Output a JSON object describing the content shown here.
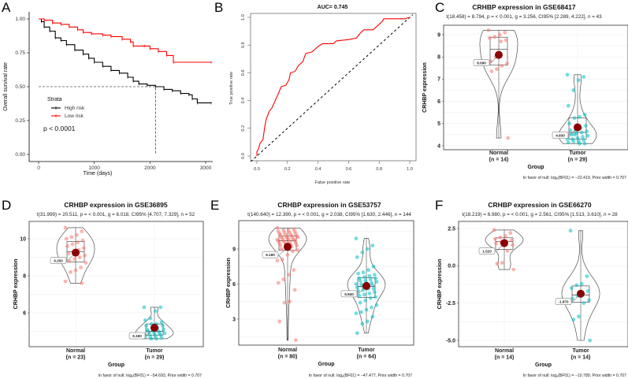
{
  "chart_data": [
    {
      "id": "A",
      "type": "line",
      "panel_label": "A",
      "title": "",
      "xlabel": "Time (days)",
      "ylabel": "Overall survival rate",
      "xlim": [
        0,
        3100
      ],
      "ylim": [
        0,
        1
      ],
      "xticks": [
        "0",
        "1000",
        "2000",
        "3000"
      ],
      "yticks": [
        "0.00",
        "0.25",
        "0.50",
        "0.75",
        "1.00"
      ],
      "legend_title": "Strata",
      "legend_position": "center-left",
      "p_value_text": "p < 0.0001",
      "median_survival_high_risk_days": 2100,
      "series": [
        {
          "name": "High risk",
          "color": "#000000",
          "points": [
            [
              0,
              1
            ],
            [
              50,
              0.98
            ],
            [
              100,
              0.94
            ],
            [
              200,
              0.91
            ],
            [
              300,
              0.86
            ],
            [
              400,
              0.84
            ],
            [
              500,
              0.81
            ],
            [
              650,
              0.77
            ],
            [
              800,
              0.74
            ],
            [
              900,
              0.71
            ],
            [
              1000,
              0.68
            ],
            [
              1150,
              0.65
            ],
            [
              1300,
              0.62
            ],
            [
              1450,
              0.6
            ],
            [
              1600,
              0.57
            ],
            [
              1700,
              0.54
            ],
            [
              1800,
              0.52
            ],
            [
              1950,
              0.51
            ],
            [
              2100,
              0.5
            ],
            [
              2250,
              0.48
            ],
            [
              2400,
              0.47
            ],
            [
              2550,
              0.45
            ],
            [
              2700,
              0.44
            ],
            [
              2760,
              0.41
            ],
            [
              2850,
              0.38
            ],
            [
              3100,
              0.38
            ]
          ]
        },
        {
          "name": "Low risk",
          "color": "#ff0000",
          "points": [
            [
              0,
              1
            ],
            [
              100,
              0.99
            ],
            [
              250,
              0.97
            ],
            [
              400,
              0.96
            ],
            [
              550,
              0.94
            ],
            [
              700,
              0.92
            ],
            [
              800,
              0.9
            ],
            [
              950,
              0.89
            ],
            [
              1150,
              0.88
            ],
            [
              1300,
              0.87
            ],
            [
              1500,
              0.85
            ],
            [
              1650,
              0.83
            ],
            [
              1700,
              0.8
            ],
            [
              1900,
              0.8
            ],
            [
              2000,
              0.78
            ],
            [
              2150,
              0.76
            ],
            [
              2300,
              0.73
            ],
            [
              2420,
              0.68
            ],
            [
              3100,
              0.68
            ]
          ]
        }
      ]
    },
    {
      "id": "B",
      "type": "line",
      "panel_label": "B",
      "title": "AUC= 0.745",
      "xlabel": "False positive rate",
      "ylabel": "True positive rate",
      "xlim": [
        0,
        1
      ],
      "ylim": [
        0,
        1
      ],
      "xticks": [
        "0.0",
        "0.2",
        "0.4",
        "0.6",
        "0.8",
        "1.0"
      ],
      "yticks": [
        "0.0",
        "0.2",
        "0.4",
        "0.6",
        "0.8",
        "1.0"
      ],
      "series": [
        {
          "name": "ROC",
          "color": "#ff0000",
          "points": [
            [
              0,
              0
            ],
            [
              0,
              0.03
            ],
            [
              0.01,
              0.05
            ],
            [
              0.02,
              0.09
            ],
            [
              0.04,
              0.12
            ],
            [
              0.05,
              0.2
            ],
            [
              0.06,
              0.26
            ],
            [
              0.08,
              0.32
            ],
            [
              0.1,
              0.35
            ],
            [
              0.12,
              0.4
            ],
            [
              0.14,
              0.45
            ],
            [
              0.16,
              0.5
            ],
            [
              0.19,
              0.51
            ],
            [
              0.21,
              0.55
            ],
            [
              0.22,
              0.6
            ],
            [
              0.25,
              0.61
            ],
            [
              0.27,
              0.65
            ],
            [
              0.3,
              0.68
            ],
            [
              0.32,
              0.74
            ],
            [
              0.36,
              0.75
            ],
            [
              0.38,
              0.77
            ],
            [
              0.4,
              0.79
            ],
            [
              0.43,
              0.81
            ],
            [
              0.5,
              0.81
            ],
            [
              0.52,
              0.83
            ],
            [
              0.6,
              0.84
            ],
            [
              0.65,
              0.85
            ],
            [
              0.68,
              0.89
            ],
            [
              0.7,
              0.91
            ],
            [
              0.76,
              0.91
            ],
            [
              0.79,
              0.94
            ],
            [
              0.82,
              0.97
            ],
            [
              0.83,
              0.99
            ],
            [
              0.97,
              0.99
            ],
            [
              1,
              1
            ]
          ]
        },
        {
          "name": "Reference",
          "color": "#000000",
          "points": [
            [
              0,
              0
            ],
            [
              1,
              1
            ]
          ]
        }
      ]
    },
    {
      "id": "C",
      "type": "violin",
      "panel_label": "C",
      "title": "CRHBP expression in GSE68417",
      "subtitle": "t(18.458) = 8.794, p = < 0.001, g = 3.256, CI95% [2.289, 4.222], n = 43",
      "xlabel": "Group",
      "ylabel": "CRHBP expression",
      "yticks": [
        4,
        5,
        6,
        7,
        8,
        9
      ],
      "footnote": "In favor of null: logₑ(BF01) = −22.419, Prior width = 0.707",
      "groups": [
        {
          "name": "Normal",
          "n_label": "(n = 14)",
          "mean": 8.09,
          "mean_label": "8.090",
          "color": "#f8766d",
          "values": [
            9.2,
            9.1,
            9.0,
            8.9,
            8.85,
            8.75,
            8.7,
            8.0,
            7.8,
            7.7,
            7.6,
            7.45,
            7.35,
            4.35
          ]
        },
        {
          "name": "Tumor",
          "n_label": "(n = 29)",
          "mean": 4.83,
          "mean_label": "4.830",
          "color": "#00bfc4",
          "values": [
            7.2,
            7.1,
            6.95,
            6.5,
            5.8,
            5.4,
            5.3,
            5.25,
            5.0,
            4.9,
            4.8,
            4.7,
            4.7,
            4.65,
            4.6,
            4.55,
            4.5,
            4.45,
            4.4,
            4.35,
            4.3,
            4.3,
            4.25,
            4.2,
            4.2,
            4.15,
            4.1,
            4.1,
            4.5
          ]
        }
      ]
    },
    {
      "id": "D",
      "type": "violin",
      "panel_label": "D",
      "title": "CRHBP expression in GSE36895",
      "subtitle": "t(31.999) = 20.511, p = < 0.001, g = 6.018, CI95% [4.707, 7.329], n = 52",
      "xlabel": "Group",
      "ylabel": "CRHBP expression",
      "yticks": [
        6,
        8,
        10
      ],
      "footnote": "In favor of null: logₑ(BF01) = −54.693, Prior width = 0.707",
      "groups": [
        {
          "name": "Normal",
          "n_label": "(n = 23)",
          "mean": 9.25,
          "mean_label": "9.250",
          "color": "#f8766d",
          "values": [
            10.6,
            10.4,
            10.2,
            10.1,
            10.0,
            9.9,
            9.8,
            9.7,
            9.6,
            9.5,
            9.4,
            9.3,
            9.2,
            9.1,
            9.0,
            8.9,
            8.8,
            8.7,
            8.45,
            8.3,
            8.2,
            7.7,
            7.6
          ]
        },
        {
          "name": "Tumor",
          "n_label": "(n = 29)",
          "mean": 5.19,
          "mean_label": "5.190",
          "color": "#00bfc4",
          "values": [
            6.3,
            6.3,
            6.1,
            5.7,
            5.6,
            5.5,
            5.4,
            5.4,
            5.3,
            5.3,
            5.2,
            5.2,
            5.1,
            5.1,
            5.0,
            5.0,
            5.0,
            4.9,
            4.9,
            4.9,
            4.85,
            4.8,
            4.8,
            4.75,
            4.7,
            4.7,
            4.65,
            4.6,
            4.6
          ]
        }
      ]
    },
    {
      "id": "E",
      "type": "violin",
      "panel_label": "E",
      "title": "CRHBP expression in GSE53757",
      "subtitle": "t(140.640) = 12.390, p = < 0.001, g = 2.038, CI95% [1.630, 2.446], n = 144",
      "xlabel": "Group",
      "ylabel": "CRHBP expression",
      "yticks": [
        3,
        6,
        9
      ],
      "footnote": "In favor of null: logₑ(BF01) = −47.477, Prior width = 0.707",
      "groups": [
        {
          "name": "Normal",
          "n_label": "(n = 80)",
          "mean": 9.19,
          "mean_label": "9.190",
          "color": "#f8766d",
          "values": [
            10.8,
            10.7,
            10.6,
            10.6,
            10.5,
            10.5,
            10.4,
            10.4,
            10.3,
            10.3,
            10.2,
            10.2,
            10.2,
            10.1,
            10.1,
            10.0,
            10.0,
            10.0,
            9.9,
            9.9,
            9.9,
            9.8,
            9.8,
            9.8,
            9.7,
            9.7,
            9.7,
            9.6,
            9.6,
            9.5,
            9.5,
            9.4,
            9.4,
            9.3,
            9.3,
            9.2,
            9.1,
            9.0,
            8.9,
            8.8,
            8.5,
            8.1,
            8.0,
            7.2,
            6.8,
            6.4,
            6.1,
            5.5,
            4.5,
            4.4,
            2.8,
            1.2
          ]
        },
        {
          "name": "Tumor",
          "n_label": "(n = 64)",
          "mean": 5.84,
          "mean_label": "5.840",
          "color": "#00bfc4",
          "values": [
            9.9,
            9.3,
            9.0,
            8.7,
            8.3,
            7.5,
            7.2,
            7.0,
            6.9,
            6.8,
            6.7,
            6.6,
            6.5,
            6.5,
            6.4,
            6.3,
            6.3,
            6.2,
            6.1,
            6.1,
            6.0,
            6.0,
            5.9,
            5.8,
            5.8,
            5.7,
            5.6,
            5.6,
            5.5,
            5.4,
            5.3,
            5.2,
            5.1,
            5.0,
            4.9,
            4.8,
            4.6,
            4.4,
            4.2,
            4.0,
            3.8,
            3.6,
            3.5,
            3.2,
            2.8,
            2.6,
            1.8
          ]
        }
      ]
    },
    {
      "id": "F",
      "type": "violin",
      "panel_label": "F",
      "title": "CRHBP expression in GSE66270",
      "subtitle": "t(18.219) = 6.980, p = < 0.001, g = 2.561, CI95% [1.513, 3.610], n = 28",
      "xlabel": "Group",
      "ylabel": "CRHBP expression",
      "yticks": [
        -5.0,
        -2.5,
        0.0,
        2.5
      ],
      "footnote": "In favor of null: logₑ(BF01) = −10.789, Prior width = 0.707",
      "groups": [
        {
          "name": "Normal",
          "n_label": "(n = 14)",
          "mean": 1.52,
          "mean_label": "1.520",
          "color": "#f8766d",
          "values": [
            2.4,
            2.2,
            2.0,
            1.9,
            1.8,
            1.7,
            1.65,
            1.6,
            1.5,
            1.4,
            1.0,
            0.2,
            0.15,
            -0.25
          ]
        },
        {
          "name": "Tumor",
          "n_label": "(n = 14)",
          "mean": -1.87,
          "mean_label": "-1.870",
          "color": "#00bfc4",
          "values": [
            2.35,
            -0.7,
            -1.2,
            -1.3,
            -1.5,
            -1.7,
            -1.9,
            -2.0,
            -2.2,
            -2.3,
            -2.5,
            -3.4,
            -3.6,
            -5.0
          ]
        }
      ]
    }
  ]
}
